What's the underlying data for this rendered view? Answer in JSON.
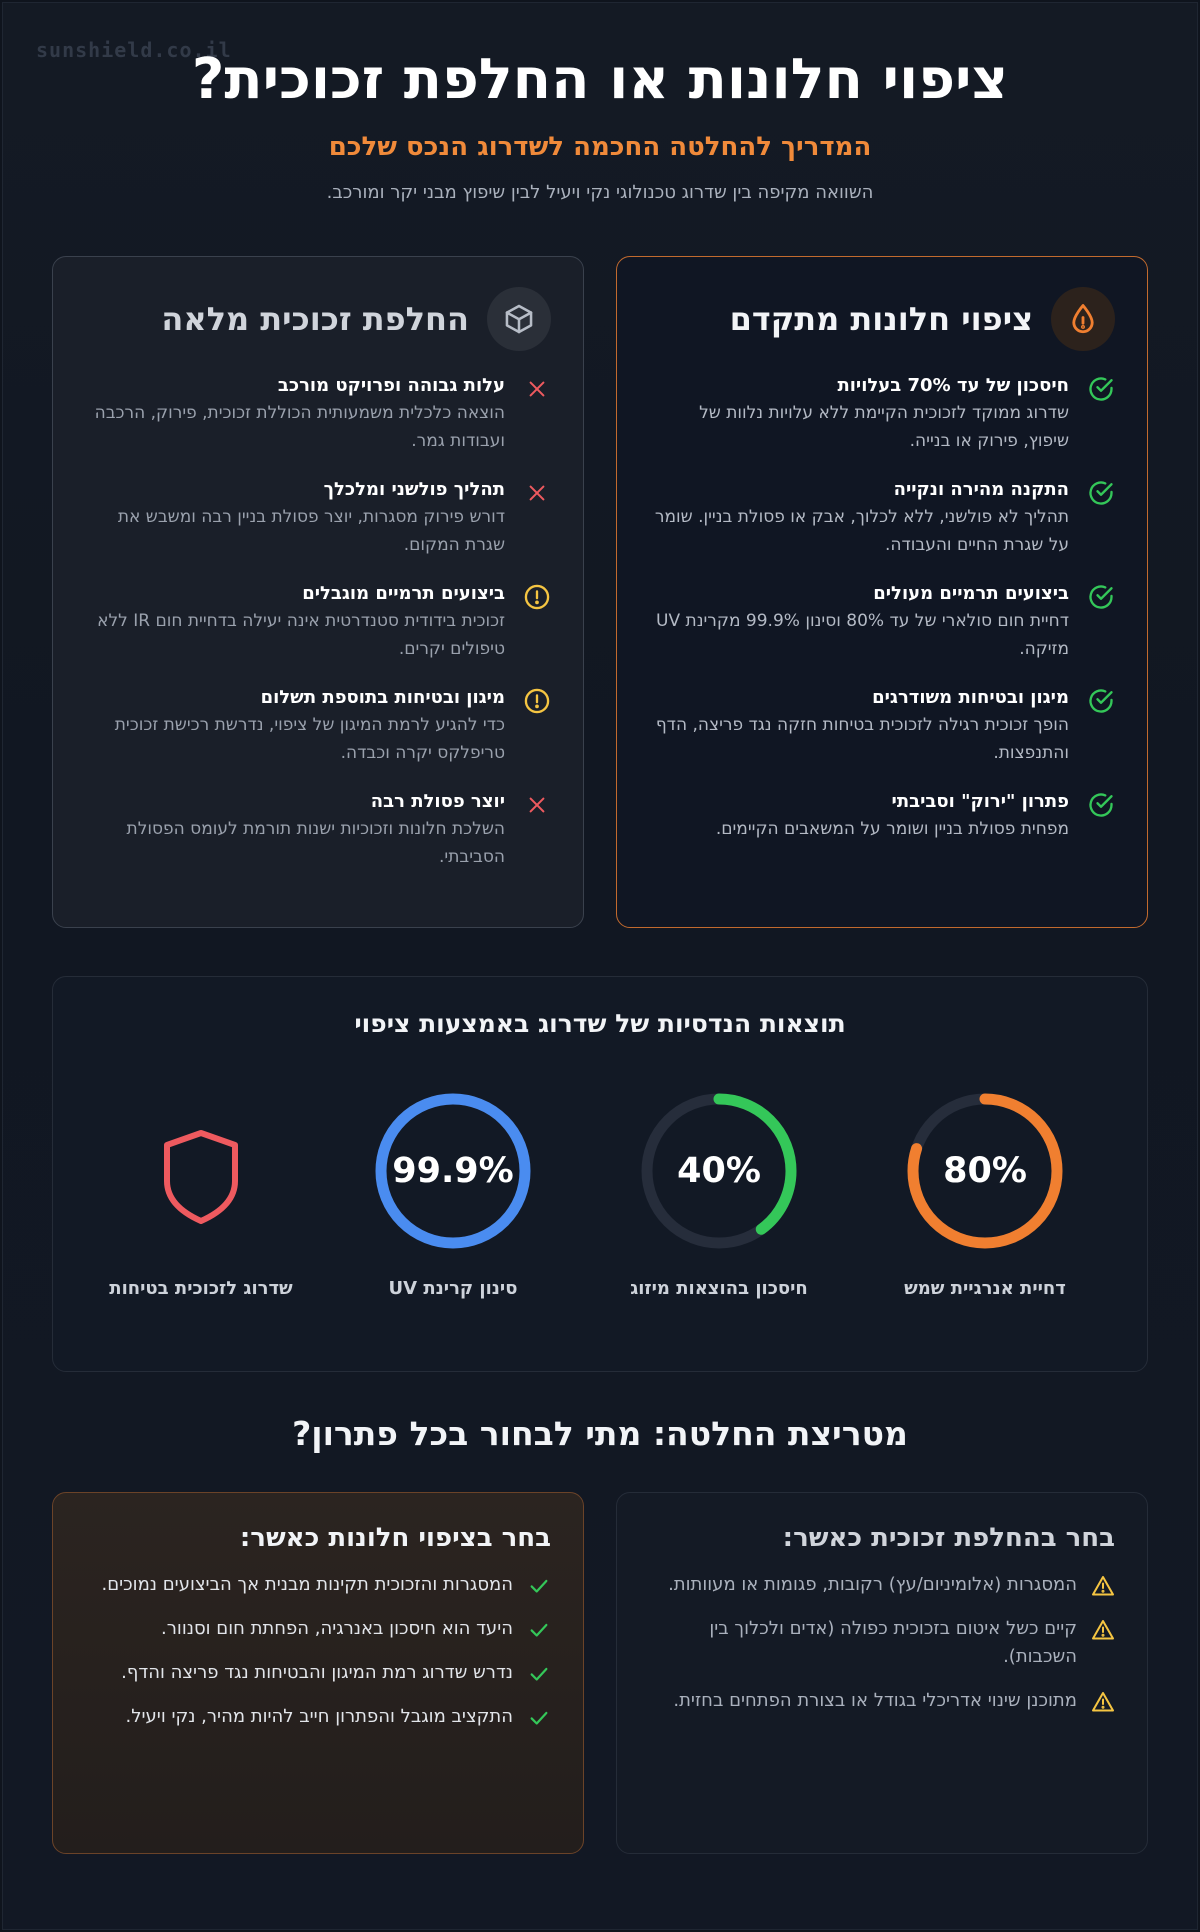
{
  "watermark": "sunshield.co.il",
  "hero": {
    "title": "ציפוי חלונות או החלפת זכוכית?",
    "subtitle": "המדריך להחלטה החכמה לשדרוג הנכס שלכם",
    "description": "השוואה מקיפה בין שדרוג טכנולוגי נקי ויעיל לבין שיפוץ מבני יקר ומורכב."
  },
  "film_card": {
    "title": "ציפוי חלונות מתקדם",
    "icon": "water-drop-icon",
    "items": [
      {
        "title": "חיסכון של עד 70% בעלויות",
        "desc": "שדרוג ממוקד לזכוכית הקיימת ללא עלויות נלוות של שיפוץ, פירוק או בנייה.",
        "status": "check"
      },
      {
        "title": "התקנה מהירה ונקייה",
        "desc": "תהליך לא פולשני, ללא לכלוך, אבק או פסולת בניין. שומר על שגרת החיים והעבודה.",
        "status": "check"
      },
      {
        "title": "ביצועים תרמיים מעולים",
        "desc": "דחיית חום סולארי של עד 80% וסינון 99.9% מקרינת UV מזיקה.",
        "status": "check"
      },
      {
        "title": "מיגון ובטיחות משודרגים",
        "desc": "הופך זכוכית רגילה לזכוכית בטיחות חזקה נגד פריצה, הדף והתנפצות.",
        "status": "check"
      },
      {
        "title": "פתרון \"ירוק\" וסביבתי",
        "desc": "מפחית פסולת בניין ושומר על המשאבים הקיימים.",
        "status": "check"
      }
    ]
  },
  "glass_card": {
    "title": "החלפת זכוכית מלאה",
    "icon": "cube-icon",
    "items": [
      {
        "title": "עלות גבוהה ופרויקט מורכב",
        "desc": "הוצאה כלכלית משמעותית הכוללת זכוכית, פירוק, הרכבה ועבודות גמר.",
        "status": "x"
      },
      {
        "title": "תהליך פולשני ומלכלך",
        "desc": "דורש פירוק מסגרות, יוצר פסולת בניין רבה ומשבש את שגרת המקום.",
        "status": "x"
      },
      {
        "title": "ביצועים תרמיים מוגבלים",
        "desc": "זכוכית בידודית סטנדרטית אינה יעילה בדחיית חום IR ללא טיפולים יקרים.",
        "status": "warn"
      },
      {
        "title": "מיגון ובטיחות בתוספת תשלום",
        "desc": "כדי להגיע לרמת המיגון של ציפוי, נדרשת רכישת זכוכית טריפלקס יקרה וכבדה.",
        "status": "warn"
      },
      {
        "title": "יוצר פסולת רבה",
        "desc": "השלכת חלונות וזכוכיות ישנות תורמת לעומס הפסולת הסביבתי.",
        "status": "x"
      }
    ]
  },
  "results": {
    "title": "תוצאות הנדסיות של שדרוג באמצעות ציפוי",
    "stats": [
      {
        "value": "80%",
        "fraction": 0.8,
        "label": "דחיית אנרגיית שמש",
        "color": "#f07f30"
      },
      {
        "value": "40%",
        "fraction": 0.4,
        "label": "חיסכון בהוצאות מיזוג",
        "color": "#34c759"
      },
      {
        "value": "99.9%",
        "fraction": 0.999,
        "label": "סינון קרינת UV",
        "color": "#4a8cf0"
      },
      {
        "value": "",
        "fraction": null,
        "label": "שדרוג לזכוכית בטיחות",
        "color": "#ee5a5f",
        "icon": "shield-icon"
      }
    ]
  },
  "matrix": {
    "title": "מטריצת החלטה: מתי לבחור בכל פתרון?",
    "film": {
      "title": "בחר בציפוי חלונות כאשר:",
      "items": [
        "המסגרות והזכוכית תקינות מבנית אך הביצועים נמוכים.",
        "היעד הוא חיסכון באנרגיה, הפחתת חום וסנוור.",
        "נדרש שדרוג רמת המיגון והבטיחות נגד פריצה והדף.",
        "התקציב מוגבל והפתרון חייב להיות מהיר, נקי ויעיל."
      ]
    },
    "glass": {
      "title": "בחר בהחלפת זכוכית כאשר:",
      "items": [
        "המסגרות (אלומיניום/עץ) רקובות, פגומות או מעוותות.",
        "קיים כשל איטום בזכוכית כפולה (אדים ולכלוך בין השכבות).",
        "מתוכנן שינוי אדריכלי בגודל או בצורת הפתחים בחזית."
      ]
    }
  },
  "colors": {
    "accent": "#f08a3a",
    "check": "#34c759",
    "x": "#ee5a5f",
    "warn": "#f5c542"
  }
}
